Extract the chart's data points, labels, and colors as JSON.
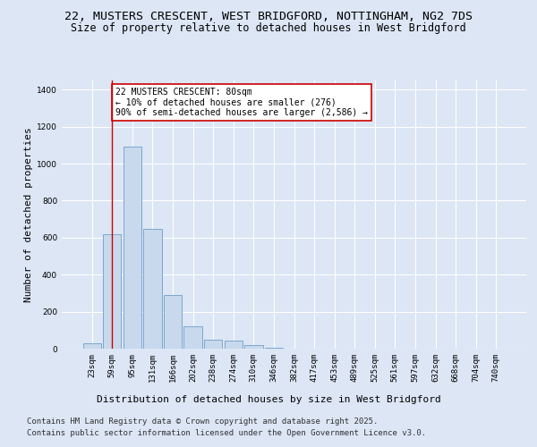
{
  "title_line1": "22, MUSTERS CRESCENT, WEST BRIDGFORD, NOTTINGHAM, NG2 7DS",
  "title_line2": "Size of property relative to detached houses in West Bridgford",
  "xlabel": "Distribution of detached houses by size in West Bridgford",
  "ylabel": "Number of detached properties",
  "categories": [
    "23sqm",
    "59sqm",
    "95sqm",
    "131sqm",
    "166sqm",
    "202sqm",
    "238sqm",
    "274sqm",
    "310sqm",
    "346sqm",
    "382sqm",
    "417sqm",
    "453sqm",
    "489sqm",
    "525sqm",
    "561sqm",
    "597sqm",
    "632sqm",
    "668sqm",
    "704sqm",
    "740sqm"
  ],
  "values": [
    30,
    620,
    1090,
    650,
    290,
    120,
    50,
    45,
    20,
    5,
    0,
    0,
    0,
    0,
    0,
    0,
    0,
    0,
    0,
    0,
    0
  ],
  "bar_color": "#c8d9ed",
  "bar_edge_color": "#7ba7cc",
  "vline_x": 1.0,
  "vline_color": "#cc0000",
  "annotation_text": "22 MUSTERS CRESCENT: 80sqm\n← 10% of detached houses are smaller (276)\n90% of semi-detached houses are larger (2,586) →",
  "annotation_box_color": "#ffffff",
  "annotation_box_edge_color": "#cc0000",
  "ylim": [
    0,
    1450
  ],
  "yticks": [
    0,
    200,
    400,
    600,
    800,
    1000,
    1200,
    1400
  ],
  "footer_line1": "Contains HM Land Registry data © Crown copyright and database right 2025.",
  "footer_line2": "Contains public sector information licensed under the Open Government Licence v3.0.",
  "background_color": "#dce6f5",
  "plot_bg_color": "#dce6f5",
  "grid_color": "#ffffff",
  "title_fontsize": 9.5,
  "subtitle_fontsize": 8.5,
  "axis_label_fontsize": 8,
  "tick_fontsize": 6.5,
  "annotation_fontsize": 7,
  "footer_fontsize": 6.5
}
